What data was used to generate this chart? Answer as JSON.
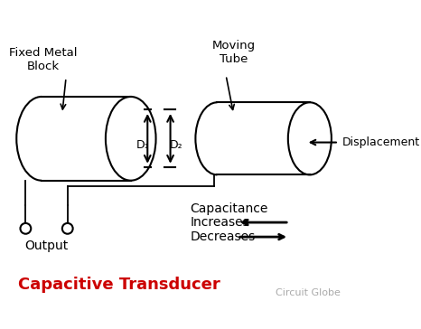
{
  "title": "Capacitive Transducer",
  "title_color": "#cc0000",
  "watermark": "Circuit Globe",
  "bg_color": "#ffffff",
  "fixed_block_label": "Fixed Metal\nBlock",
  "moving_tube_label": "Moving\nTube",
  "displacement_label": "Displacement",
  "output_label": "Output",
  "capacitance_label": "Capacitance",
  "increases_label": "Increases",
  "decreases_label": "Decreases",
  "d1_label": "D₁",
  "d2_label": "D₂",
  "fig_w": 4.66,
  "fig_h": 3.64,
  "dpi": 100
}
